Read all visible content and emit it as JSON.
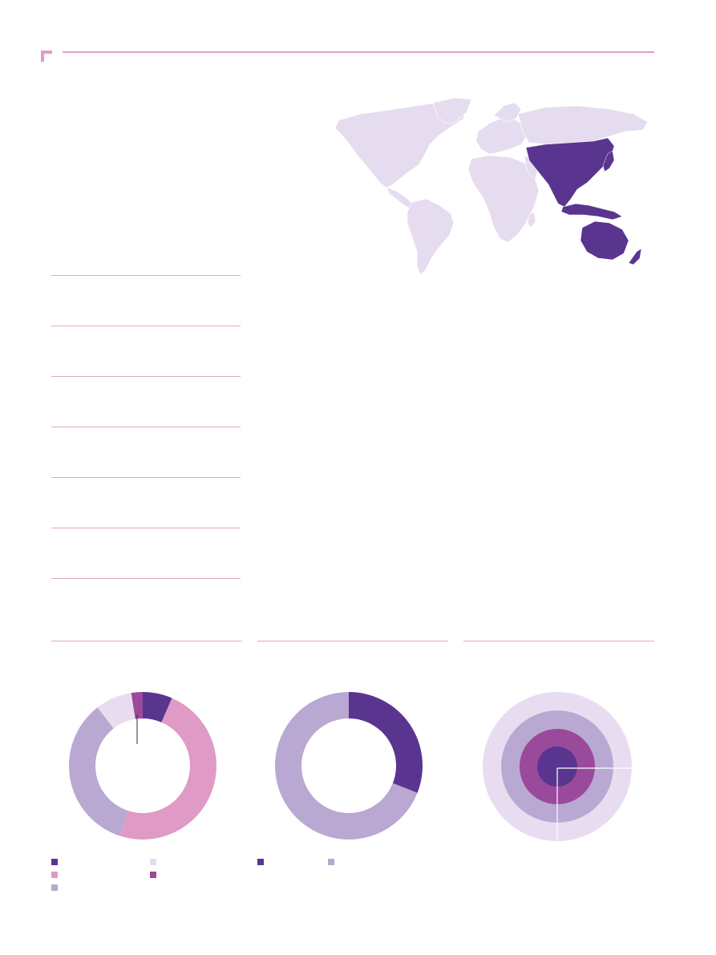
{
  "colors": {
    "accent_pink": "#e39bc6",
    "deep_purple": "#5a3590",
    "magenta_purple": "#9a4a9a",
    "pink": "#e09ac6",
    "lavender": "#b9a8d2",
    "pale_lavender": "#e8ddf0",
    "map_land": "#e6dcef"
  },
  "map": {
    "highlighted_region": "Asia-Pacific"
  },
  "stat_rows": [
    {
      "label": "",
      "value": ""
    },
    {
      "label": "",
      "value": ""
    },
    {
      "label": "",
      "value": ""
    },
    {
      "label": "",
      "value": ""
    },
    {
      "label": "",
      "value": ""
    },
    {
      "label": "",
      "value": ""
    }
  ],
  "chart_data": [
    {
      "type": "pie",
      "title": "",
      "slices": [
        {
          "label": "",
          "value": 6.5,
          "color": "#5a3590"
        },
        {
          "label": "",
          "value": 48.5,
          "color": "#e09ac6"
        },
        {
          "label": "",
          "value": 34.5,
          "color": "#b9a8d2"
        },
        {
          "label": "",
          "value": 8.0,
          "color": "#e8ddf0"
        },
        {
          "label": "",
          "value": 2.5,
          "color": "#9a4a9a"
        }
      ]
    },
    {
      "type": "pie",
      "title": "",
      "slices": [
        {
          "label": "",
          "value": 31,
          "color": "#5a3590"
        },
        {
          "label": "",
          "value": 69,
          "color": "#b9a8d2"
        }
      ]
    },
    {
      "type": "pie",
      "title": "",
      "rings": [
        {
          "label": "",
          "color": "#e8ddf0"
        },
        {
          "label": "",
          "color": "#b9a8d2"
        },
        {
          "label": "",
          "color": "#9a4a9a"
        },
        {
          "label": "",
          "color": "#5a3590"
        }
      ]
    }
  ]
}
